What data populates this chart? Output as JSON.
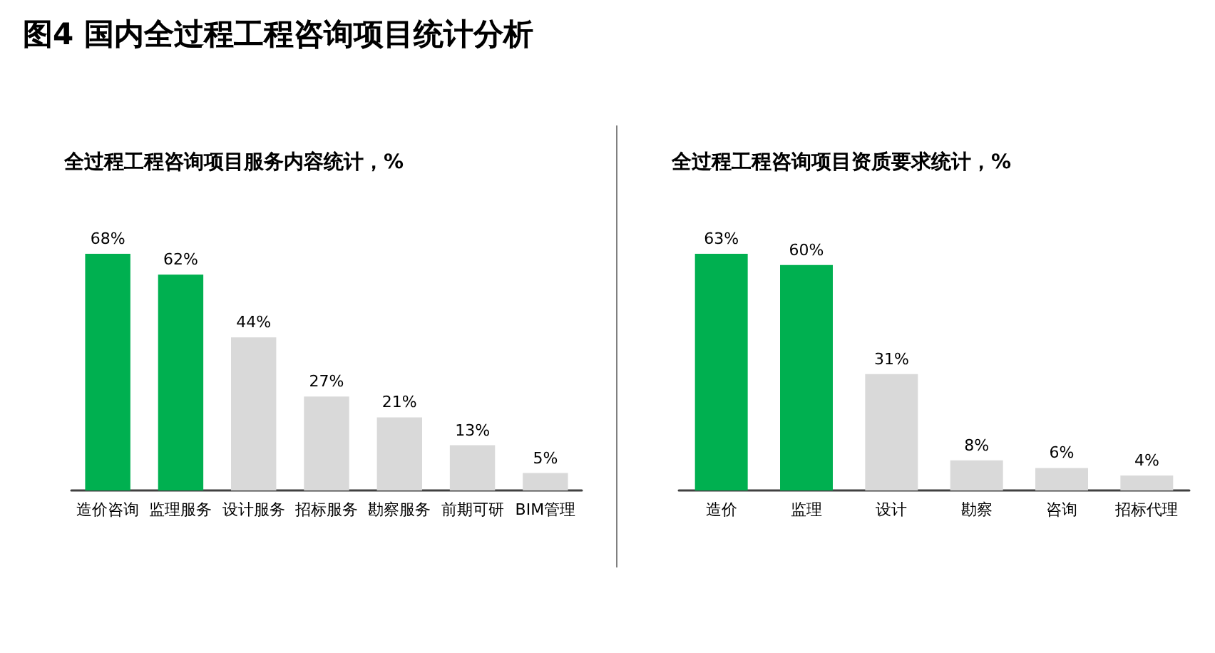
{
  "chart_data": [
    {
      "type": "bar",
      "annotations": [
        "图4 国内全过程工程咨询项目统计分析"
      ],
      "title": "全过程工程咨询项目服务内容统计，%",
      "categories": [
        "造价咨询",
        "监理服务",
        "设计服务",
        "招标服务",
        "勘察服务",
        "前期可研",
        "BIM管理"
      ],
      "values": [
        68,
        62,
        44,
        27,
        21,
        13,
        5
      ],
      "colors": [
        "#00b050",
        "#00b050",
        "#d9d9d9",
        "#d9d9d9",
        "#d9d9d9",
        "#d9d9d9",
        "#d9d9d9"
      ],
      "value_labels": [
        "68%",
        "62%",
        "44%",
        "27%",
        "21%",
        "13%",
        "5%"
      ]
    },
    {
      "type": "bar",
      "title": "全过程工程咨询项目资质要求统计，%",
      "categories": [
        "造价",
        "监理",
        "设计",
        "勘察",
        "咨询",
        "招标代理"
      ],
      "values": [
        63,
        60,
        31,
        8,
        6,
        4
      ],
      "colors": [
        "#00b050",
        "#00b050",
        "#d9d9d9",
        "#d9d9d9",
        "#d9d9d9",
        "#d9d9d9"
      ],
      "value_labels": [
        "63%",
        "60%",
        "31%",
        "8%",
        "6%",
        "4%"
      ]
    }
  ]
}
